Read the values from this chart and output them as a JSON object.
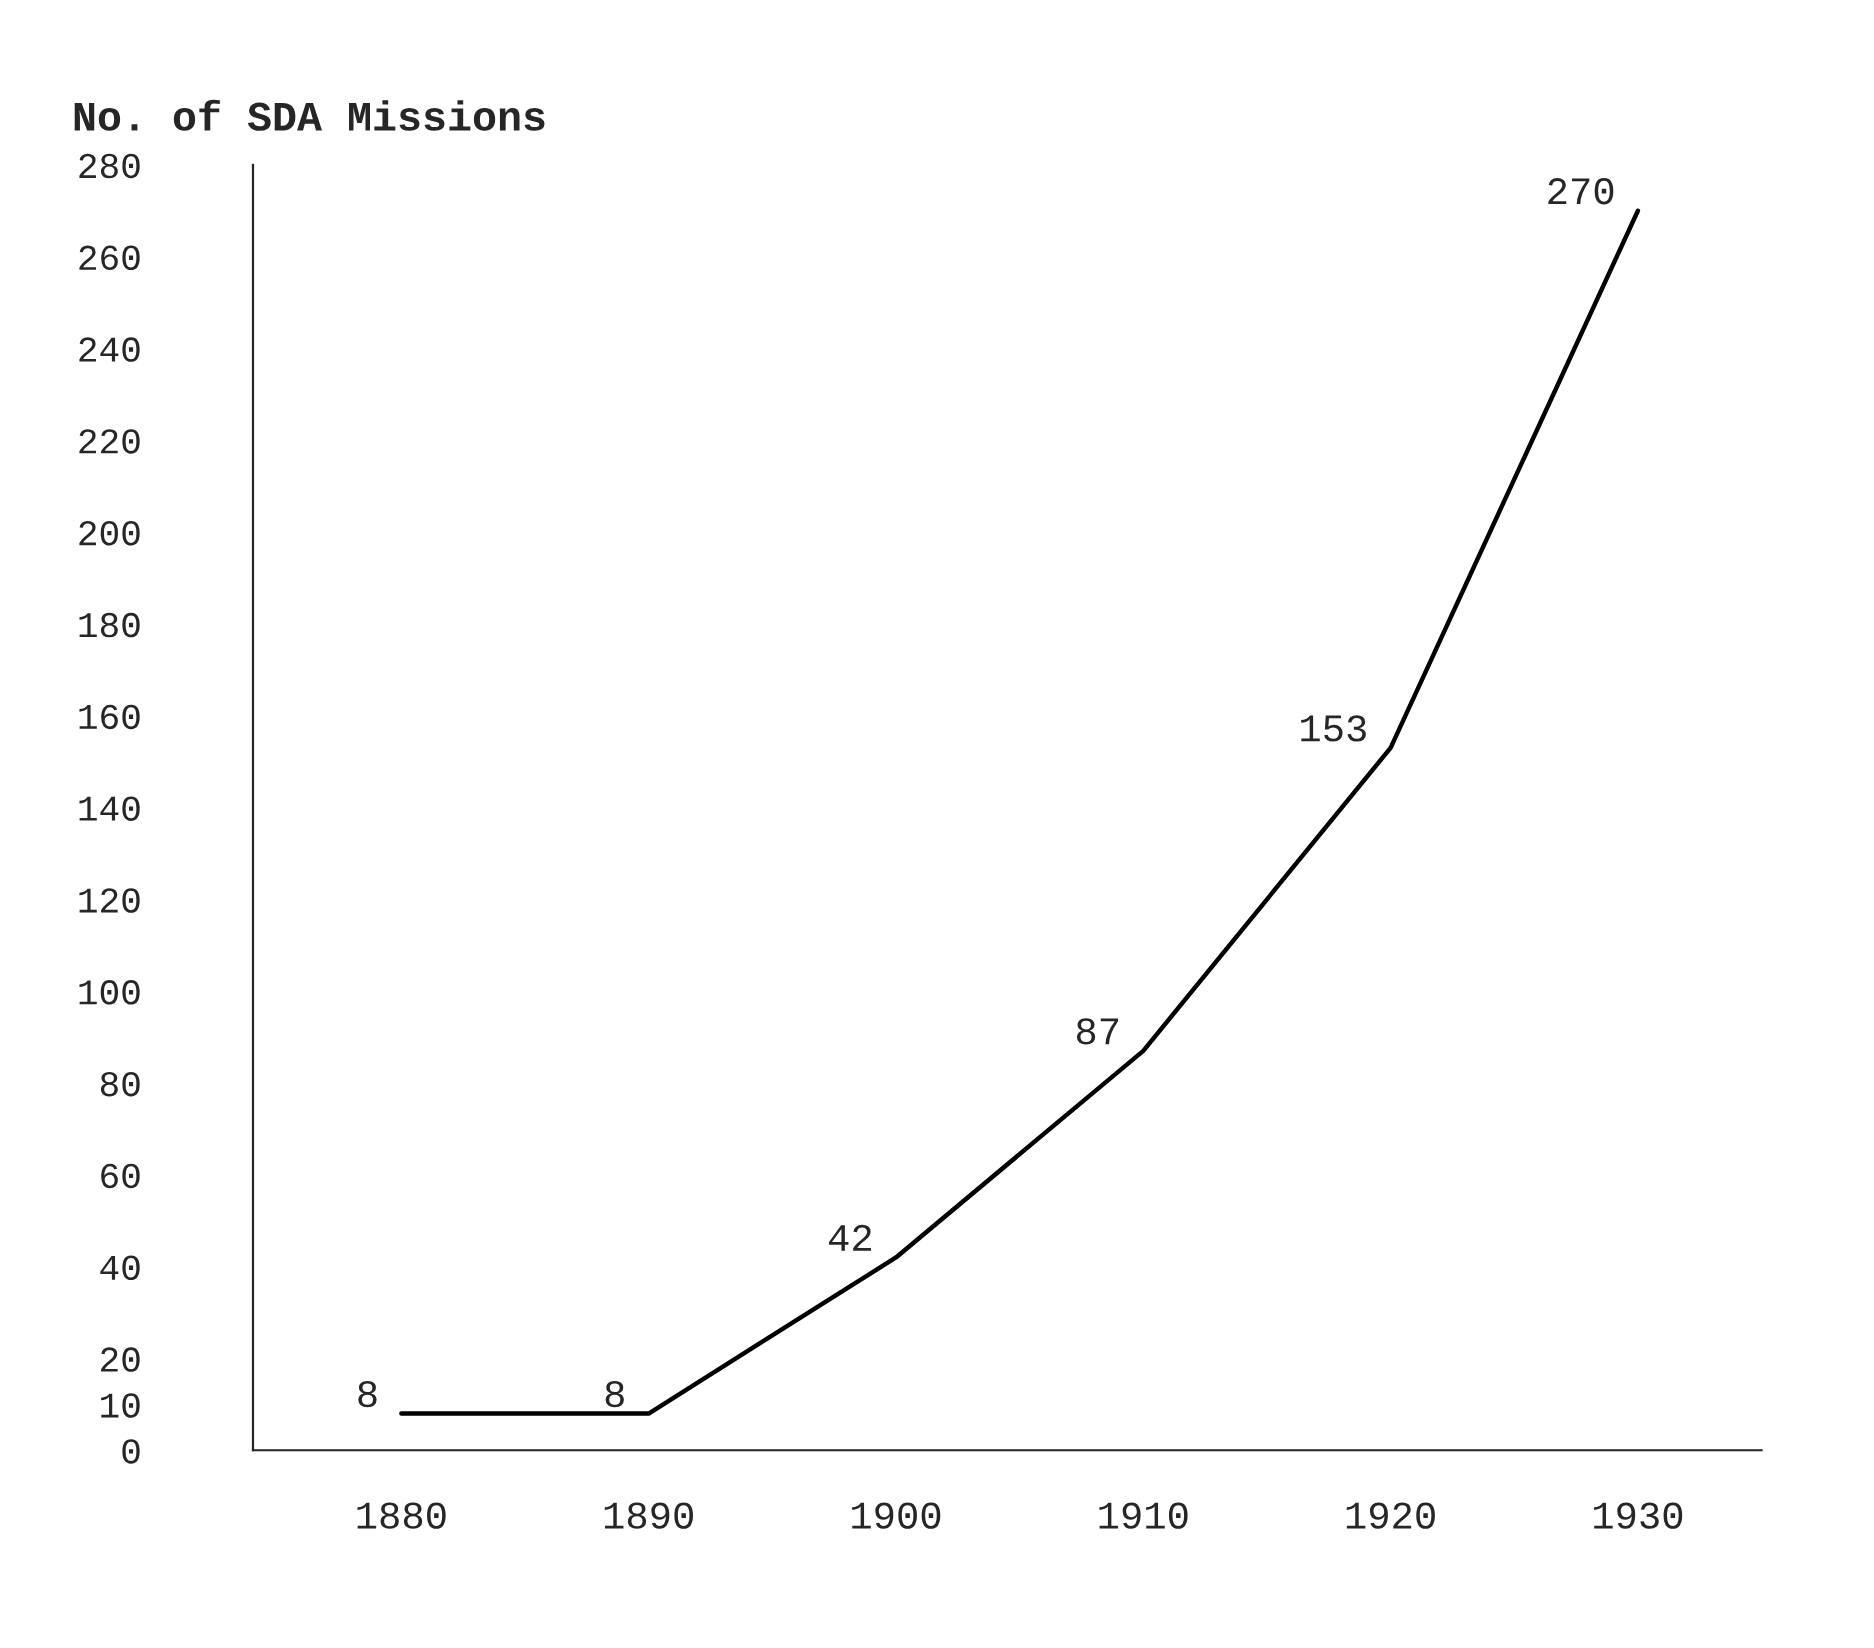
{
  "chart_data": {
    "type": "line",
    "ylabel": "No. of SDA Missions",
    "categories": [
      "1880",
      "1890",
      "1900",
      "1910",
      "1920",
      "1930"
    ],
    "series": [
      {
        "color": "#000000",
        "values": [
          8,
          8,
          42,
          87,
          153,
          270
        ]
      }
    ],
    "ylim": [
      0,
      280
    ],
    "yticks": [
      0,
      10,
      20,
      40,
      60,
      80,
      100,
      120,
      140,
      160,
      180,
      200,
      220,
      240,
      260,
      280
    ],
    "data_labels": true,
    "grid": false,
    "legend": false,
    "marker": "none",
    "line_style": "solid"
  }
}
